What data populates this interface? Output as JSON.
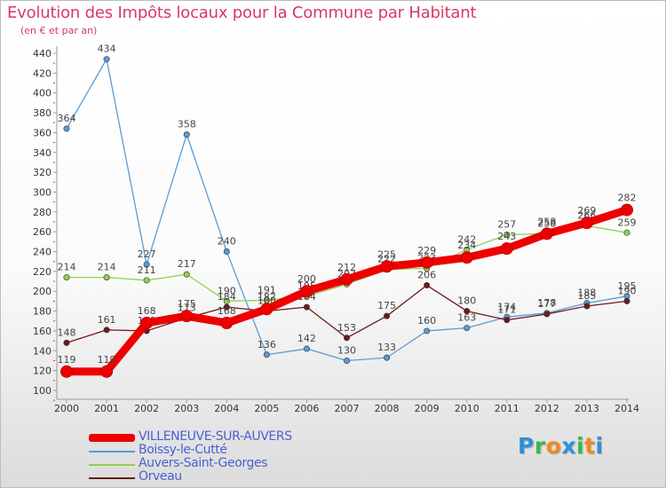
{
  "title": "Evolution des Impôts locaux pour la Commune par Habitant",
  "subtitle": "(en € et par an)",
  "logo": {
    "letters": [
      "P",
      "r",
      "o",
      "x",
      "i",
      "t",
      "i"
    ],
    "colors": [
      "#2f8fd8",
      "#3fb64a",
      "#f08a1c",
      "#2f8fd8",
      "#3fb64a",
      "#f08a1c",
      "#2f8fd8"
    ]
  },
  "chart_data": {
    "type": "line",
    "title": "Evolution des Impôts locaux pour la Commune par Habitant",
    "subtitle": "(en € et par an)",
    "x": [
      2000,
      2001,
      2002,
      2003,
      2004,
      2005,
      2006,
      2007,
      2008,
      2009,
      2010,
      2011,
      2012,
      2013,
      2014
    ],
    "ylim": [
      100,
      440
    ],
    "yticks": [
      100,
      120,
      140,
      160,
      180,
      200,
      220,
      240,
      260,
      280,
      300,
      320,
      340,
      360,
      380,
      400,
      420,
      440
    ],
    "grid": false,
    "legend_position": "bottom-left",
    "series": [
      {
        "name": "Boissy-le-Cutté",
        "color": "#5b9bd5",
        "values": [
          364,
          434,
          227,
          358,
          240,
          136,
          142,
          130,
          133,
          160,
          163,
          174,
          178,
          188,
          195
        ],
        "labels": [
          "364",
          "434",
          "227",
          "358",
          "240",
          "136",
          "142",
          "130",
          "133",
          "160",
          "163",
          "174",
          "178",
          "188",
          "195"
        ]
      },
      {
        "name": "Auvers-Saint-Georges",
        "color": "#8fd14f",
        "values": [
          214,
          214,
          211,
          217,
          190,
          191,
          195,
          207,
          222,
          223,
          242,
          257,
          258,
          266,
          259
        ],
        "labels": [
          "214",
          "214",
          "211",
          "217",
          "190",
          "191",
          "195",
          "207",
          "222",
          "223",
          "242",
          "257",
          "258",
          "266",
          "259"
        ]
      },
      {
        "name": "Orveau",
        "color": "#6e1a1a",
        "values": [
          148,
          161,
          160,
          173,
          184,
          180,
          184,
          153,
          175,
          206,
          180,
          171,
          177,
          185,
          190
        ],
        "labels": [
          "148",
          "161",
          "160",
          "173",
          "184",
          "180",
          "184",
          "153",
          "175",
          "206",
          "180",
          "171",
          "177",
          "185",
          "190"
        ]
      },
      {
        "name": "VILLENEUVE-SUR-AUVERS",
        "color": "#ee0000",
        "values": [
          119,
          119,
          168,
          175,
          168,
          182,
          200,
          212,
          225,
          229,
          234,
          243,
          258,
          269,
          282
        ],
        "labels": [
          "119",
          "119",
          "168",
          "175",
          "168",
          "182",
          "200",
          "212",
          "225",
          "229",
          "234",
          "243",
          "258",
          "269",
          "282"
        ]
      }
    ],
    "legend": [
      {
        "name": "VILLENEUVE-SUR-AUVERS",
        "color": "#ee0000",
        "weight": "thick"
      },
      {
        "name": "Boissy-le-Cutté",
        "color": "#5b9bd5",
        "weight": "thin"
      },
      {
        "name": "Auvers-Saint-Georges",
        "color": "#8fd14f",
        "weight": "thin"
      },
      {
        "name": "Orveau",
        "color": "#6e1a1a",
        "weight": "thin"
      }
    ]
  }
}
